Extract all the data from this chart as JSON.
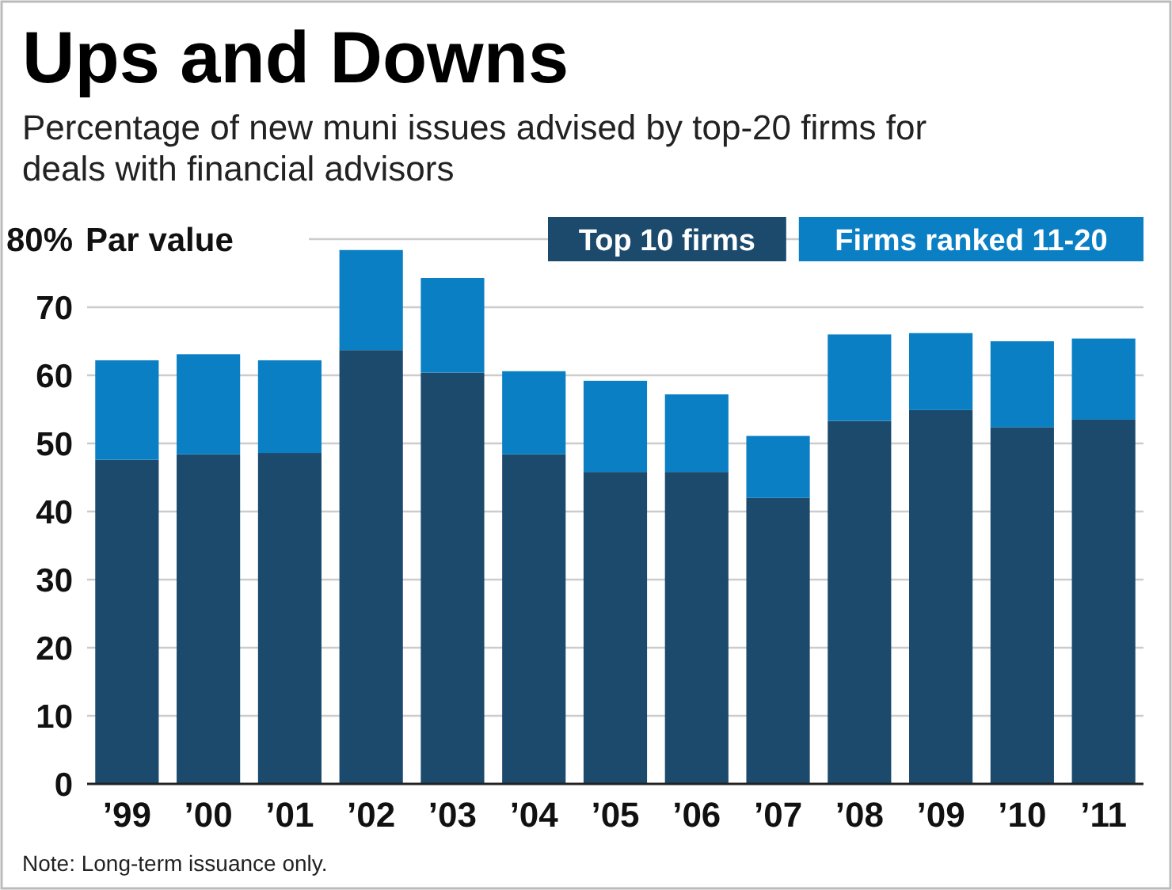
{
  "chart_data": {
    "type": "bar",
    "stacked": true,
    "title": "Ups and Downs",
    "subtitle": "Percentage of new muni issues advised by top-20 firms for deals with financial advisors",
    "ylabel": "Par value",
    "categories": [
      "’99",
      "’00",
      "’01",
      "’02",
      "’03",
      "’04",
      "’05",
      "’06",
      "’07",
      "’08",
      "’09",
      "’10",
      "’11"
    ],
    "series": [
      {
        "name": "Top 10 firms",
        "color": "#1b4a6d",
        "values": [
          47.6,
          48.4,
          48.6,
          63.7,
          60.4,
          48.4,
          45.8,
          45.8,
          42.0,
          53.3,
          54.9,
          52.4,
          53.5
        ]
      },
      {
        "name": "Firms ranked 11-20",
        "color": "#0a7fc4",
        "values": [
          14.6,
          14.7,
          13.6,
          14.7,
          13.9,
          12.2,
          13.4,
          11.4,
          9.1,
          12.7,
          11.3,
          12.6,
          11.9
        ]
      }
    ],
    "ylim": [
      0,
      80
    ],
    "yticks": [
      0,
      10,
      20,
      30,
      40,
      50,
      60,
      70,
      {
        "value": 80,
        "label": "80%"
      }
    ],
    "grid": "y",
    "legend": "top right",
    "annotations": [
      "Note: Long-term issuance only."
    ]
  }
}
